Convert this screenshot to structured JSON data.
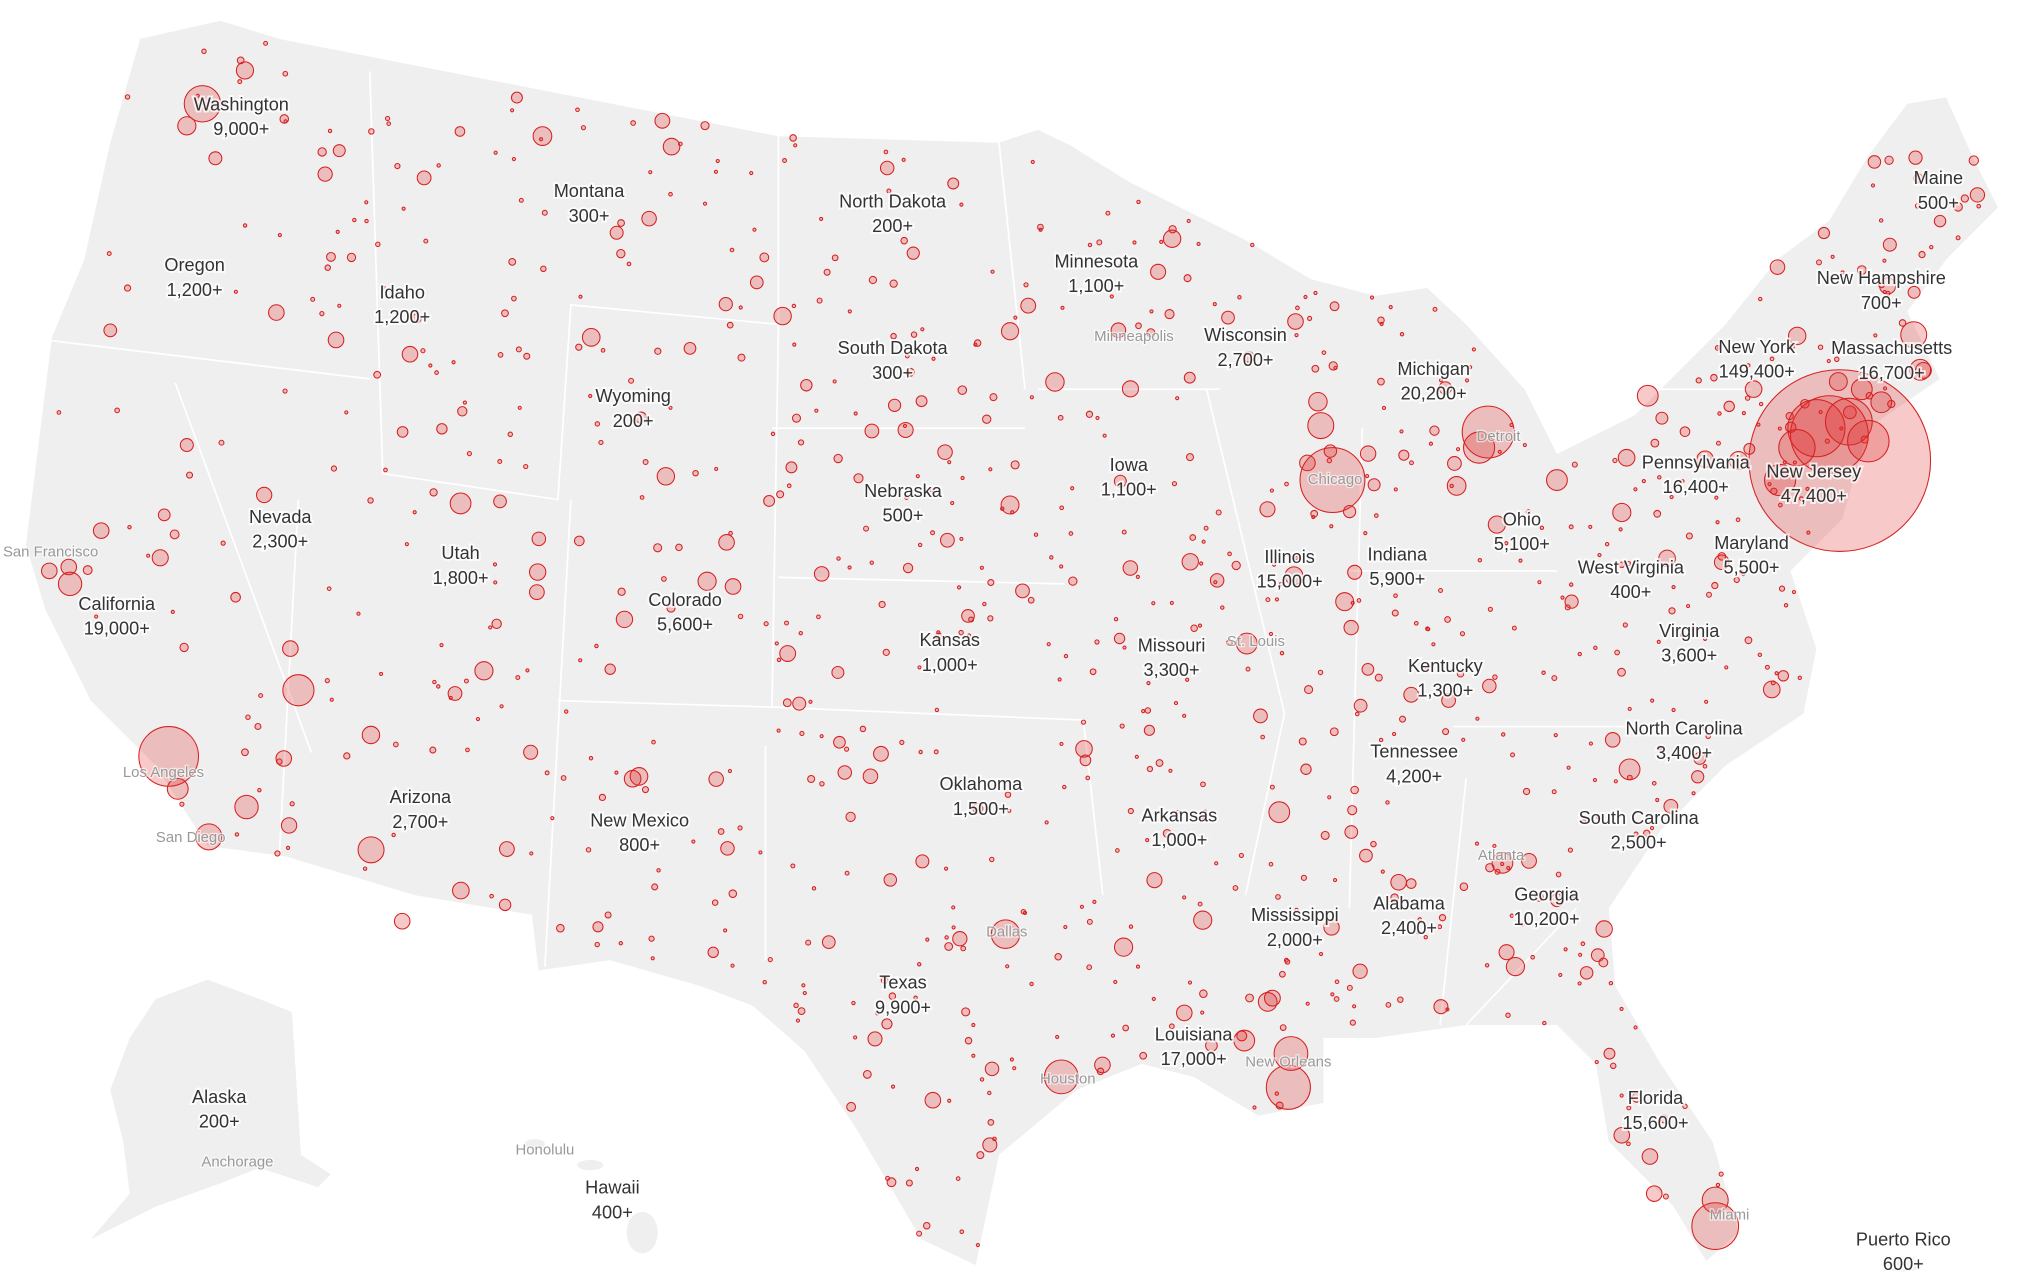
{
  "states": [
    {
      "name": "Washington",
      "cases": "9,000+"
    },
    {
      "name": "Montana",
      "cases": "300+"
    },
    {
      "name": "North Dakota",
      "cases": "200+"
    },
    {
      "name": "Oregon",
      "cases": "1,200+"
    },
    {
      "name": "Minnesota",
      "cases": "1,100+"
    },
    {
      "name": "Idaho",
      "cases": "1,200+"
    },
    {
      "name": "Maine",
      "cases": "500+"
    },
    {
      "name": "New Hampshire",
      "cases": "700+"
    },
    {
      "name": "Wisconsin",
      "cases": "2,700+"
    },
    {
      "name": "South Dakota",
      "cases": "300+"
    },
    {
      "name": "New York",
      "cases": "149,400+"
    },
    {
      "name": "Massachusetts",
      "cases": "16,700+"
    },
    {
      "name": "Michigan",
      "cases": "20,200+"
    },
    {
      "name": "Wyoming",
      "cases": "200+"
    },
    {
      "name": "Pennsylvania",
      "cases": "16,400+"
    },
    {
      "name": "New Jersey",
      "cases": "47,400+"
    },
    {
      "name": "Iowa",
      "cases": "1,100+"
    },
    {
      "name": "Nebraska",
      "cases": "500+"
    },
    {
      "name": "Nevada",
      "cases": "2,300+"
    },
    {
      "name": "Ohio",
      "cases": "5,100+"
    },
    {
      "name": "Maryland",
      "cases": "5,500+"
    },
    {
      "name": "Utah",
      "cases": "1,800+"
    },
    {
      "name": "Illinois",
      "cases": "15,000+"
    },
    {
      "name": "Indiana",
      "cases": "5,900+"
    },
    {
      "name": "West Virginia",
      "cases": "400+"
    },
    {
      "name": "Colorado",
      "cases": "5,600+"
    },
    {
      "name": "California",
      "cases": "19,000+"
    },
    {
      "name": "Virginia",
      "cases": "3,600+"
    },
    {
      "name": "Kansas",
      "cases": "1,000+"
    },
    {
      "name": "Missouri",
      "cases": "3,300+"
    },
    {
      "name": "Kentucky",
      "cases": "1,300+"
    },
    {
      "name": "Tennessee",
      "cases": "4,200+"
    },
    {
      "name": "North Carolina",
      "cases": "3,400+"
    },
    {
      "name": "Oklahoma",
      "cases": "1,500+"
    },
    {
      "name": "Arizona",
      "cases": "2,700+"
    },
    {
      "name": "New Mexico",
      "cases": "800+"
    },
    {
      "name": "Arkansas",
      "cases": "1,000+"
    },
    {
      "name": "South Carolina",
      "cases": "2,500+"
    },
    {
      "name": "Georgia",
      "cases": "10,200+"
    },
    {
      "name": "Mississippi",
      "cases": "2,000+"
    },
    {
      "name": "Alabama",
      "cases": "2,400+"
    },
    {
      "name": "Texas",
      "cases": "9,900+"
    },
    {
      "name": "Louisiana",
      "cases": "17,000+"
    },
    {
      "name": "Florida",
      "cases": "15,600+"
    },
    {
      "name": "Alaska",
      "cases": "200+"
    },
    {
      "name": "Hawaii",
      "cases": "400+"
    },
    {
      "name": "Puerto Rico",
      "cases": "600+"
    }
  ],
  "cities": [
    "Minneapolis",
    "Chicago",
    "Detroit",
    "San Francisco",
    "Los Angeles",
    "San Diego",
    "St. Louis",
    "Atlanta",
    "Dallas",
    "Houston",
    "New Orleans",
    "Miami",
    "Anchorage",
    "Honolulu"
  ]
}
